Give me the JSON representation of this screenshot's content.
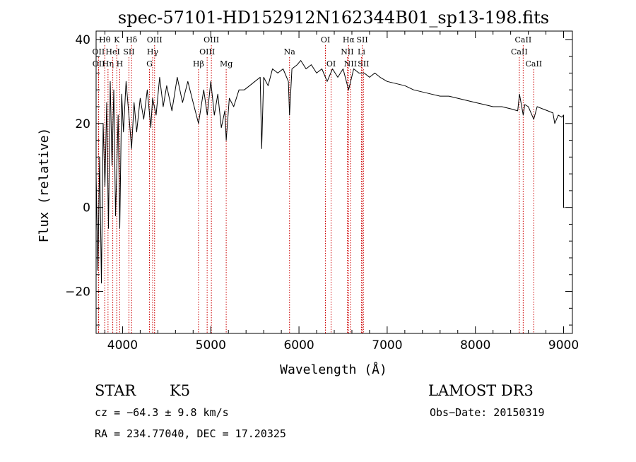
{
  "chart_data": {
    "type": "line",
    "title": "spec-57101-HD152912N162344B01_sp13-198.fits",
    "xlabel": "Wavelength (Å)",
    "ylabel": "Flux (relative)",
    "xlim": [
      3700,
      9100
    ],
    "ylim": [
      -30,
      42
    ],
    "xticks": [
      4000,
      5000,
      6000,
      7000,
      8000,
      9000
    ],
    "yticks": [
      -20,
      0,
      20,
      40
    ],
    "xtick_labels": [
      "4000",
      "5000",
      "6000",
      "7000",
      "8000",
      "9000"
    ],
    "ytick_labels": [
      "−20",
      "0",
      "20",
      "40"
    ],
    "series": [
      {
        "name": "spectrum",
        "x": [
          3700,
          3720,
          3740,
          3760,
          3780,
          3800,
          3820,
          3840,
          3860,
          3880,
          3900,
          3920,
          3933,
          3950,
          3968,
          3990,
          4010,
          4040,
          4080,
          4102,
          4130,
          4160,
          4200,
          4240,
          4280,
          4320,
          4340,
          4380,
          4420,
          4460,
          4500,
          4560,
          4620,
          4680,
          4740,
          4800,
          4861,
          4920,
          4960,
          5000,
          5040,
          5080,
          5120,
          5160,
          5175,
          5210,
          5260,
          5320,
          5380,
          5440,
          5500,
          5560,
          5577,
          5600,
          5650,
          5700,
          5760,
          5820,
          5880,
          5893,
          5920,
          5980,
          6020,
          6080,
          6140,
          6200,
          6260,
          6320,
          6380,
          6440,
          6500,
          6563,
          6620,
          6680,
          6740,
          6800,
          6860,
          6920,
          7000,
          7100,
          7200,
          7300,
          7400,
          7500,
          7600,
          7700,
          7800,
          7900,
          8000,
          8100,
          8200,
          8300,
          8400,
          8480,
          8500,
          8542,
          8560,
          8600,
          8662,
          8700,
          8760,
          8820,
          8880,
          8900,
          8940,
          8980,
          9000,
          9000,
          9010
        ],
        "y": [
          8,
          -15,
          12,
          -18,
          20,
          5,
          25,
          -5,
          30,
          10,
          28,
          -2,
          8,
          22,
          -5,
          27,
          18,
          30,
          20,
          14,
          25,
          18,
          26,
          21,
          28,
          19,
          26,
          22,
          31,
          24,
          29,
          23,
          31,
          25,
          30,
          25,
          20,
          28,
          22,
          30,
          22,
          27,
          19,
          23,
          16,
          26,
          24,
          28,
          28,
          29,
          30,
          31,
          14,
          31,
          29,
          33,
          32,
          33,
          30,
          22,
          33,
          34,
          35,
          33,
          34,
          32,
          33,
          30,
          33,
          31,
          33,
          28,
          33,
          32,
          32,
          31,
          32,
          31,
          30,
          29.5,
          29,
          28,
          27.5,
          27,
          26.5,
          26.5,
          26,
          25.5,
          25,
          24.5,
          24,
          24,
          23.5,
          23,
          27,
          22,
          24.5,
          24,
          21,
          24,
          23.5,
          23,
          22.5,
          20,
          22,
          21.5,
          22,
          0,
          0
        ]
      }
    ],
    "line_markers": [
      {
        "label": "Hθ",
        "x": 3798,
        "row": 0
      },
      {
        "label": "OII",
        "x": 3727,
        "row": 1
      },
      {
        "label": "OII",
        "x": 3729,
        "row": 2
      },
      {
        "label": "Hη",
        "x": 3835,
        "row": 2
      },
      {
        "label": "K",
        "x": 3934,
        "row": 0
      },
      {
        "label": "HeI",
        "x": 3889,
        "row": 1
      },
      {
        "label": "H",
        "x": 3968,
        "row": 2
      },
      {
        "label": "SII",
        "x": 4072,
        "row": 1
      },
      {
        "label": "Hδ",
        "x": 4102,
        "row": 0
      },
      {
        "label": "OIII",
        "x": 4363,
        "row": 0
      },
      {
        "label": "Hγ",
        "x": 4341,
        "row": 1
      },
      {
        "label": "G",
        "x": 4305,
        "row": 2
      },
      {
        "label": "OIII",
        "x": 5007,
        "row": 0
      },
      {
        "label": "OIII",
        "x": 4959,
        "row": 1
      },
      {
        "label": "Hβ",
        "x": 4861,
        "row": 2
      },
      {
        "label": "Mg",
        "x": 5175,
        "row": 2
      },
      {
        "label": "Na",
        "x": 5893,
        "row": 1
      },
      {
        "label": "OI",
        "x": 6300,
        "row": 0
      },
      {
        "label": "OI",
        "x": 6364,
        "row": 2
      },
      {
        "label": "Hα",
        "x": 6563,
        "row": 0
      },
      {
        "label": "NII",
        "x": 6548,
        "row": 1
      },
      {
        "label": "NII",
        "x": 6584,
        "row": 2
      },
      {
        "label": "SII",
        "x": 6717,
        "row": 0
      },
      {
        "label": "Li",
        "x": 6708,
        "row": 1
      },
      {
        "label": "SII",
        "x": 6731,
        "row": 2
      },
      {
        "label": "CaII",
        "x": 8542,
        "row": 0
      },
      {
        "label": "CaII",
        "x": 8498,
        "row": 1
      },
      {
        "label": "CaII",
        "x": 8662,
        "row": 2
      }
    ]
  },
  "info": {
    "object_class": "STAR",
    "subclass": "K5",
    "survey": "LAMOST DR3",
    "redshift": "cz = −64.3 ± 9.8 km/s",
    "obs_date": "Obs−Date: 20150319",
    "coords": "RA = 234.77040, DEC =  17.20325"
  },
  "colors": {
    "spectrum": "#000000",
    "marker": "#cc0000",
    "axes": "#000000",
    "background": "#ffffff"
  }
}
